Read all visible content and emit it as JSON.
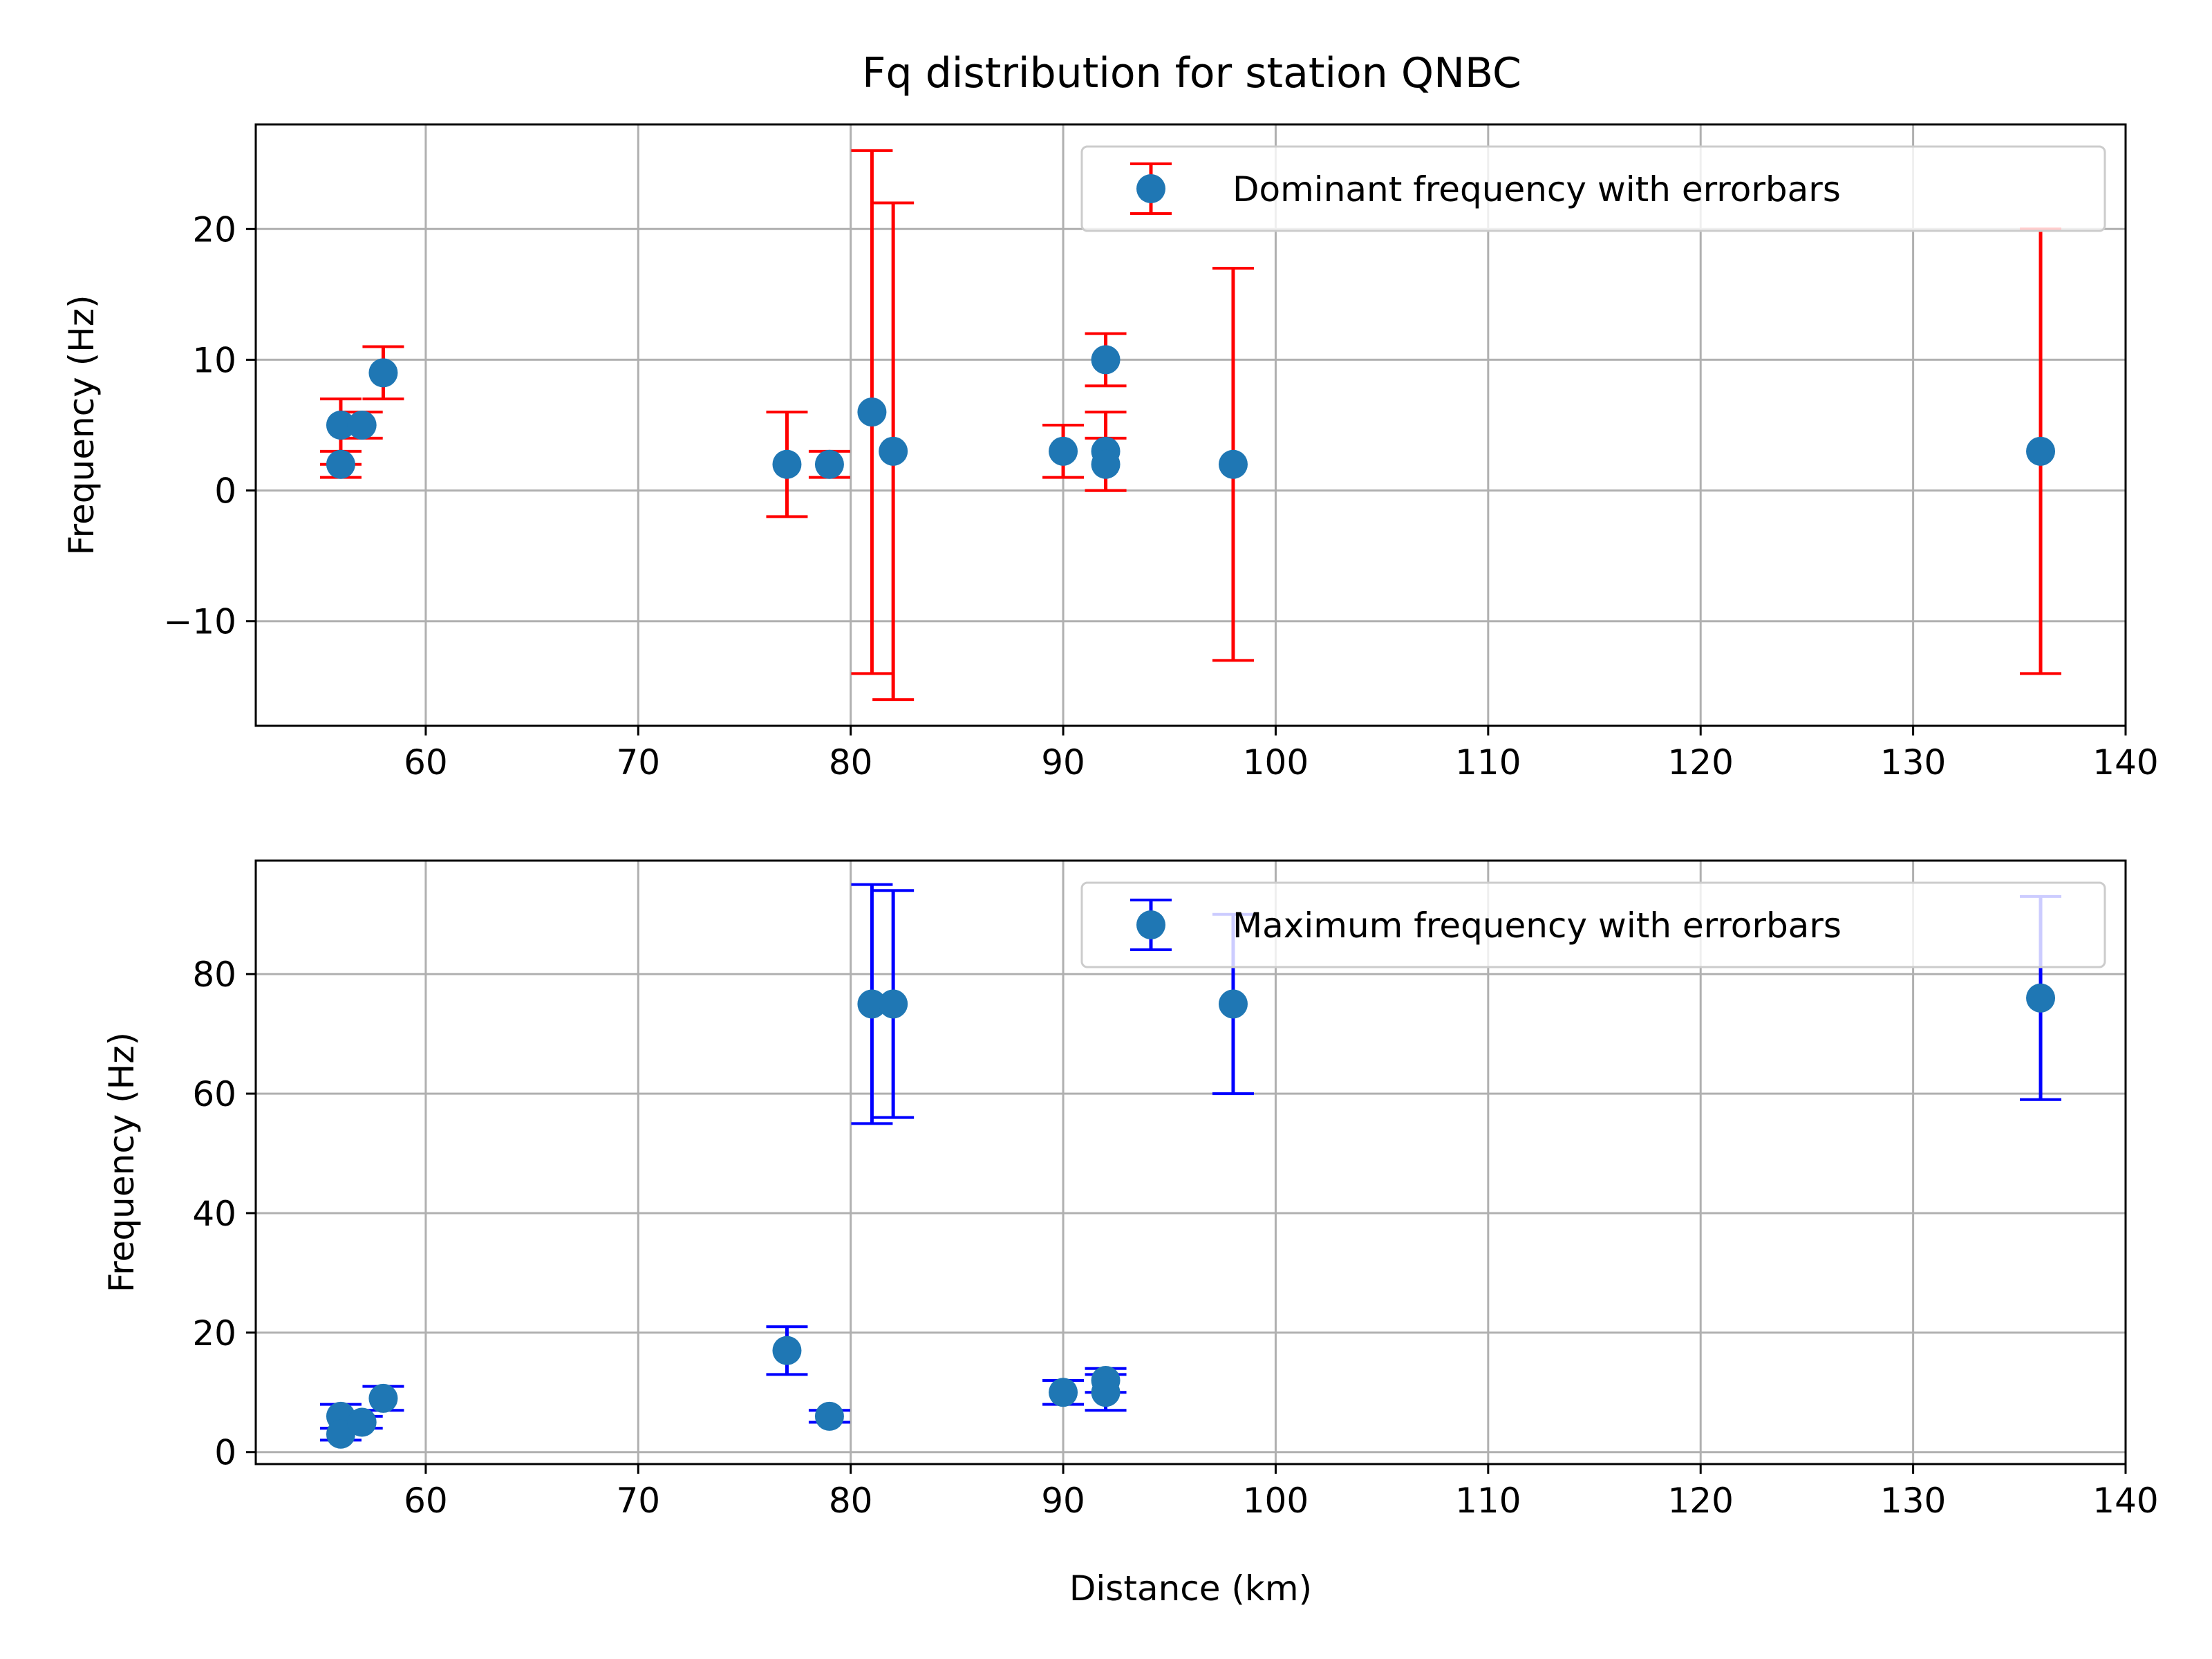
{
  "chart_data": [
    {
      "type": "scatter",
      "title": "Fq distribution for station QNBC",
      "xlabel": "",
      "ylabel": "Frequency (Hz)",
      "xlim": [
        52,
        140
      ],
      "ylim": [
        -18,
        28
      ],
      "x_ticks": [
        60,
        70,
        80,
        90,
        100,
        110,
        120,
        130,
        140
      ],
      "y_ticks": [
        -10,
        0,
        10,
        20
      ],
      "y_tick_labels": [
        "−10",
        "0",
        "10",
        "20"
      ],
      "grid": true,
      "legend_position": "upper right",
      "series": [
        {
          "name": "Dominant frequency with errorbars",
          "marker_color": "#1f77b4",
          "errorbar_color": "#ff0000",
          "points": [
            {
              "x": 56,
              "y": 5,
              "yerr_low": 2,
              "yerr_high": 7
            },
            {
              "x": 56,
              "y": 2,
              "yerr_low": 1,
              "yerr_high": 3
            },
            {
              "x": 57,
              "y": 5,
              "yerr_low": 4,
              "yerr_high": 6
            },
            {
              "x": 58,
              "y": 9,
              "yerr_low": 7,
              "yerr_high": 11
            },
            {
              "x": 77,
              "y": 2,
              "yerr_low": -2,
              "yerr_high": 6
            },
            {
              "x": 79,
              "y": 2,
              "yerr_low": 1,
              "yerr_high": 3
            },
            {
              "x": 81,
              "y": 6,
              "yerr_low": -14,
              "yerr_high": 26
            },
            {
              "x": 82,
              "y": 3,
              "yerr_low": -16,
              "yerr_high": 22
            },
            {
              "x": 90,
              "y": 3,
              "yerr_low": 1,
              "yerr_high": 5
            },
            {
              "x": 92,
              "y": 10,
              "yerr_low": 8,
              "yerr_high": 12
            },
            {
              "x": 92,
              "y": 3,
              "yerr_low": 0,
              "yerr_high": 6
            },
            {
              "x": 92,
              "y": 2,
              "yerr_low": 0,
              "yerr_high": 4
            },
            {
              "x": 98,
              "y": 2,
              "yerr_low": -13,
              "yerr_high": 17
            },
            {
              "x": 136,
              "y": 3,
              "yerr_low": -14,
              "yerr_high": 20
            }
          ]
        }
      ]
    },
    {
      "type": "scatter",
      "title": "",
      "xlabel": "Distance (km)",
      "ylabel": "Frequency (Hz)",
      "xlim": [
        52,
        140
      ],
      "ylim": [
        -2,
        99
      ],
      "x_ticks": [
        60,
        70,
        80,
        90,
        100,
        110,
        120,
        130,
        140
      ],
      "y_ticks": [
        0,
        20,
        40,
        60,
        80
      ],
      "y_tick_labels": [
        "0",
        "20",
        "40",
        "60",
        "80"
      ],
      "grid": true,
      "legend_position": "upper right",
      "series": [
        {
          "name": "Maximum frequency with errorbars",
          "marker_color": "#1f77b4",
          "errorbar_color": "#0000ff",
          "points": [
            {
              "x": 56,
              "y": 6,
              "yerr_low": 4,
              "yerr_high": 8
            },
            {
              "x": 56,
              "y": 3,
              "yerr_low": 2,
              "yerr_high": 4
            },
            {
              "x": 57,
              "y": 5,
              "yerr_low": 4,
              "yerr_high": 6
            },
            {
              "x": 58,
              "y": 9,
              "yerr_low": 7,
              "yerr_high": 11
            },
            {
              "x": 77,
              "y": 17,
              "yerr_low": 13,
              "yerr_high": 21
            },
            {
              "x": 79,
              "y": 6,
              "yerr_low": 5,
              "yerr_high": 7
            },
            {
              "x": 81,
              "y": 75,
              "yerr_low": 55,
              "yerr_high": 95
            },
            {
              "x": 82,
              "y": 75,
              "yerr_low": 56,
              "yerr_high": 94
            },
            {
              "x": 90,
              "y": 10,
              "yerr_low": 8,
              "yerr_high": 12
            },
            {
              "x": 92,
              "y": 12,
              "yerr_low": 10,
              "yerr_high": 14
            },
            {
              "x": 92,
              "y": 10,
              "yerr_low": 7,
              "yerr_high": 13
            },
            {
              "x": 98,
              "y": 75,
              "yerr_low": 60,
              "yerr_high": 90
            },
            {
              "x": 136,
              "y": 76,
              "yerr_low": 59,
              "yerr_high": 93
            }
          ]
        }
      ]
    }
  ]
}
